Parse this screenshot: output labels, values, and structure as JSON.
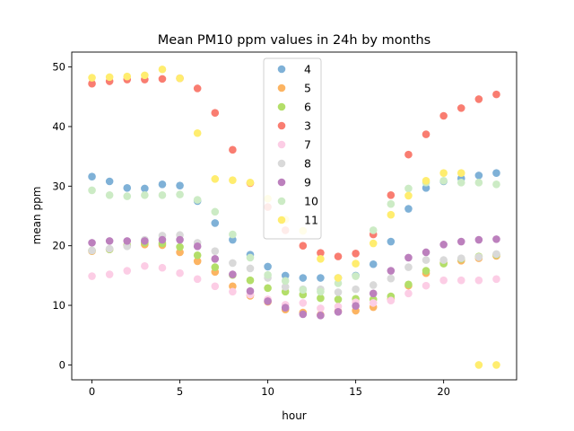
{
  "chart_data": {
    "type": "scatter",
    "title": "Mean PM10 ppm values in 24h by months",
    "xlabel": "hour",
    "ylabel": "mean ppm",
    "xlim": [
      -1.15,
      24.15
    ],
    "ylim": [
      -2.5,
      52.5
    ],
    "xticks": [
      0,
      5,
      10,
      15,
      20
    ],
    "yticks": [
      0,
      10,
      20,
      30,
      40,
      50
    ],
    "grid": false,
    "legend_position": "top-center",
    "x": [
      0,
      1,
      2,
      3,
      4,
      5,
      6,
      7,
      8,
      9,
      10,
      11,
      12,
      13,
      14,
      15,
      16,
      17,
      18,
      19,
      20,
      21,
      22,
      23
    ],
    "series": [
      {
        "name": "4",
        "color": "#7fb1d7",
        "values": [
          31.6,
          30.8,
          29.7,
          29.6,
          30.3,
          30.1,
          27.5,
          23.8,
          21.0,
          18.5,
          16.5,
          15.0,
          14.6,
          14.6,
          14.6,
          15.0,
          16.9,
          20.7,
          26.2,
          29.7,
          30.8,
          31.3,
          31.8,
          32.2
        ]
      },
      {
        "name": "5",
        "color": "#fcb462",
        "values": [
          19.1,
          19.4,
          20.0,
          20.2,
          20.1,
          18.9,
          17.4,
          15.6,
          13.2,
          11.6,
          10.6,
          9.3,
          8.8,
          8.4,
          9.0,
          9.1,
          9.7,
          11.0,
          13.3,
          15.4,
          17.1,
          17.5,
          17.9,
          18.3
        ]
      },
      {
        "name": "6",
        "color": "#b3de69",
        "values": [
          19.2,
          19.4,
          20.1,
          20.5,
          20.4,
          19.8,
          18.4,
          16.4,
          15.1,
          14.2,
          12.9,
          12.3,
          11.8,
          11.2,
          11.0,
          11.1,
          11.0,
          11.5,
          13.5,
          15.8,
          17.0,
          17.8,
          18.2,
          18.5
        ]
      },
      {
        "name": "3",
        "color": "#f97d71",
        "values": [
          47.2,
          47.6,
          47.9,
          47.9,
          48.0,
          48.1,
          46.4,
          42.3,
          36.1,
          30.5,
          26.5,
          22.6,
          20.0,
          18.8,
          18.2,
          18.7,
          21.9,
          28.5,
          35.3,
          38.7,
          41.8,
          43.1,
          44.6,
          45.4
        ]
      },
      {
        "name": "7",
        "color": "#fccde5",
        "values": [
          14.9,
          15.2,
          15.8,
          16.6,
          16.3,
          15.4,
          14.4,
          13.2,
          12.3,
          11.8,
          11.0,
          10.1,
          10.4,
          9.5,
          9.8,
          10.5,
          10.4,
          10.8,
          12.0,
          13.3,
          14.2,
          14.2,
          14.2,
          14.4
        ]
      },
      {
        "name": "8",
        "color": "#d9d9d9",
        "values": [
          19.2,
          19.5,
          19.9,
          21.0,
          21.7,
          21.8,
          20.5,
          19.1,
          17.1,
          16.2,
          14.6,
          13.1,
          12.7,
          12.7,
          12.2,
          12.7,
          13.4,
          14.5,
          16.4,
          17.6,
          17.6,
          17.9,
          18.1,
          18.6
        ]
      },
      {
        "name": "9",
        "color": "#bc80bd",
        "values": [
          20.5,
          20.8,
          20.8,
          20.8,
          21.0,
          21.0,
          19.9,
          17.8,
          15.2,
          12.4,
          10.7,
          9.6,
          8.5,
          8.3,
          8.9,
          9.9,
          12.0,
          15.8,
          18.0,
          18.9,
          20.2,
          20.7,
          21.0,
          21.1
        ]
      },
      {
        "name": "10",
        "color": "#ccebc5",
        "values": [
          29.3,
          28.5,
          28.3,
          28.5,
          28.5,
          28.6,
          27.7,
          25.7,
          21.9,
          18.0,
          15.1,
          14.1,
          12.6,
          12.3,
          13.7,
          14.9,
          22.6,
          27.0,
          29.6,
          30.6,
          30.9,
          30.6,
          30.6,
          30.3
        ]
      },
      {
        "name": "11",
        "color": "#ffed6f",
        "values": [
          48.2,
          48.3,
          48.4,
          48.6,
          49.6,
          48.1,
          38.9,
          31.2,
          31.0,
          30.6,
          27.9,
          24.4,
          22.5,
          17.8,
          14.6,
          17.0,
          20.4,
          25.2,
          28.4,
          30.9,
          32.2,
          32.2,
          0.0,
          0.0
        ]
      }
    ]
  }
}
